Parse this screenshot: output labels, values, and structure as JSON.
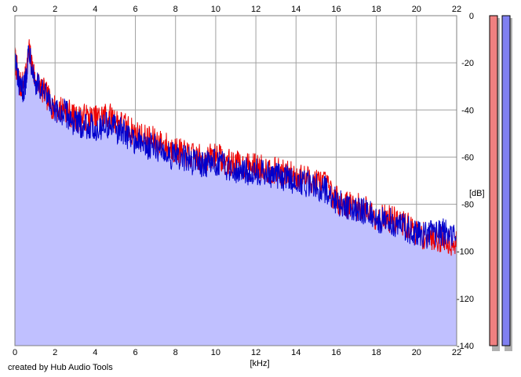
{
  "chart_data": {
    "type": "line",
    "xlabel": "[kHz]",
    "ylabel": "[dB]",
    "xlim": [
      0,
      22
    ],
    "ylim": [
      -140,
      0
    ],
    "x_ticks": [
      0,
      2,
      4,
      6,
      8,
      10,
      12,
      14,
      16,
      18,
      20,
      22
    ],
    "y_ticks": [
      0,
      -20,
      -40,
      -60,
      -80,
      -100,
      -120,
      -140
    ],
    "grid": true,
    "series": [
      {
        "color": "#ee0000",
        "x": [
          0,
          0.25,
          0.5,
          0.7,
          1.0,
          1.5,
          2,
          2.5,
          3,
          3.5,
          4,
          4.5,
          5,
          5.5,
          6,
          6.5,
          7,
          7.5,
          8,
          8.5,
          9,
          9.5,
          10,
          10.5,
          11,
          11.5,
          12,
          12.5,
          13,
          13.5,
          14,
          14.5,
          15,
          15.5,
          16,
          16.5,
          17,
          17.5,
          18,
          18.5,
          19,
          19.5,
          20,
          20.5,
          21,
          21.5,
          22
        ],
        "values": [
          -18,
          -30,
          -28,
          -15,
          -27,
          -33,
          -40,
          -39,
          -44,
          -43,
          -44,
          -42,
          -44,
          -47,
          -50,
          -52,
          -53,
          -55,
          -57,
          -59,
          -60,
          -61,
          -59,
          -62,
          -63,
          -64,
          -64,
          -65,
          -66,
          -67,
          -68,
          -69,
          -70,
          -72,
          -78,
          -80,
          -81,
          -82,
          -85,
          -86,
          -87,
          -89,
          -92,
          -94,
          -94,
          -96,
          -96
        ]
      },
      {
        "color": "#0000cc",
        "x": [
          0,
          0.25,
          0.5,
          0.7,
          1.0,
          1.5,
          2,
          2.5,
          3,
          3.5,
          4,
          4.5,
          5,
          5.5,
          6,
          6.5,
          7,
          7.5,
          8,
          8.5,
          9,
          9.5,
          10,
          10.5,
          11,
          11.5,
          12,
          12.5,
          13,
          13.5,
          14,
          14.5,
          15,
          15.5,
          16,
          16.5,
          17,
          17.5,
          18,
          18.5,
          19,
          19.5,
          20,
          20.5,
          21,
          21.5,
          22
        ],
        "values": [
          -18,
          -32,
          -30,
          -13,
          -28,
          -34,
          -42,
          -41,
          -46,
          -46,
          -48,
          -46,
          -48,
          -50,
          -53,
          -55,
          -56,
          -58,
          -60,
          -61,
          -62,
          -63,
          -62,
          -64,
          -65,
          -66,
          -66,
          -67,
          -68,
          -69,
          -70,
          -71,
          -72,
          -74,
          -79,
          -81,
          -82,
          -83,
          -86,
          -87,
          -88,
          -90,
          -93,
          -93,
          -92,
          -92,
          -93
        ]
      }
    ],
    "fill_color": "#c0c0ff",
    "meters": [
      {
        "color": "#f08080",
        "value_db": 0
      },
      {
        "color": "#8080f0",
        "value_db": 0
      }
    ]
  },
  "footer": {
    "credit": "created by Hub Audio Tools"
  }
}
